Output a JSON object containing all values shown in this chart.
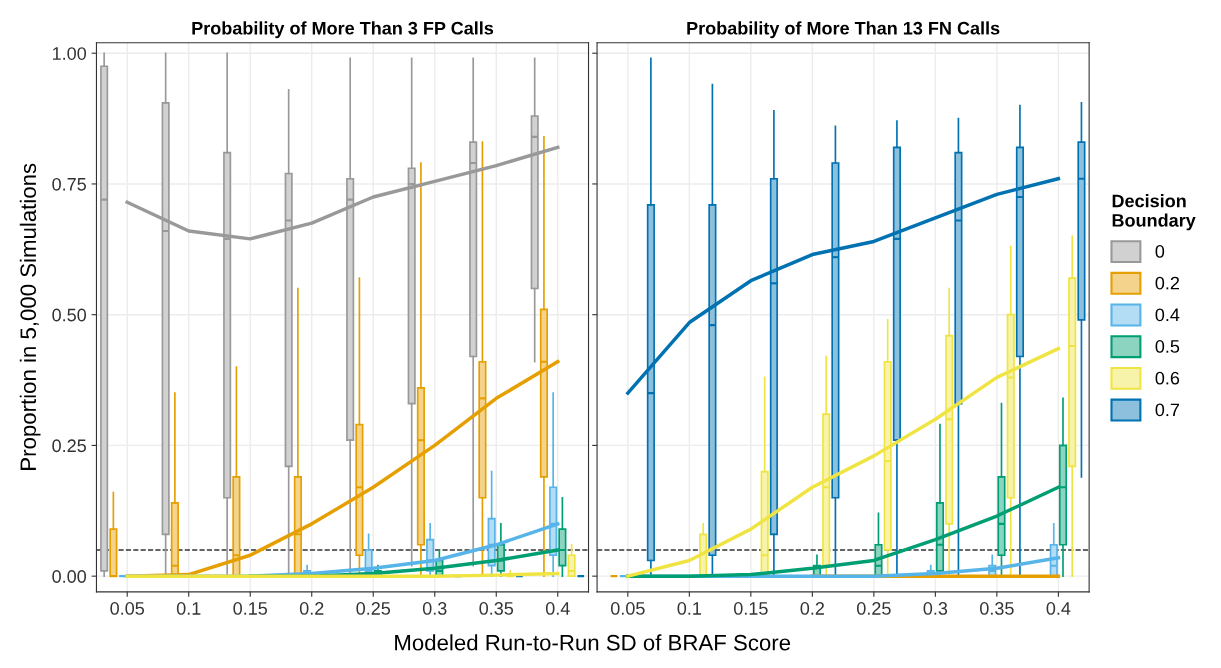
{
  "chart_data": [
    {
      "type": "box",
      "title": "Probability of More Than 3 FP Calls",
      "ylabel": "Proportion in 5,000 Simulations",
      "xlabel": "Modeled Run-to-Run SD of BRAF Score",
      "categories": [
        "0.05",
        "0.1",
        "0.15",
        "0.2",
        "0.25",
        "0.3",
        "0.35",
        "0.4"
      ],
      "ylim": [
        -0.03,
        1.02
      ],
      "yticks": [
        {
          "value": 0,
          "label": "0.00"
        },
        {
          "value": 0.25,
          "label": "0.25"
        },
        {
          "value": 0.5,
          "label": "0.50"
        },
        {
          "value": 0.75,
          "label": "0.75"
        },
        {
          "value": 1,
          "label": "1.00"
        }
      ],
      "grid": true,
      "legend": "right",
      "legend_title": "Decision\nBoundary",
      "ref_lines": [
        {
          "axis": "y",
          "value": 0.05,
          "color": "#333333",
          "line_style": "dashed"
        }
      ],
      "series": [
        {
          "name": "0",
          "color": "#999999",
          "boxes": [
            {
              "low": 0,
              "q1": 0.01,
              "median": 0.72,
              "q3": 0.975,
              "high": 1.0
            },
            {
              "low": 0,
              "q1": 0.08,
              "median": 0.66,
              "q3": 0.905,
              "high": 1.0
            },
            {
              "low": 0,
              "q1": 0.15,
              "median": 0.645,
              "q3": 0.81,
              "high": 1.0
            },
            {
              "low": 0,
              "q1": 0.21,
              "median": 0.68,
              "q3": 0.77,
              "high": 0.93
            },
            {
              "low": 0,
              "q1": 0.26,
              "median": 0.72,
              "q3": 0.76,
              "high": 0.99
            },
            {
              "low": 0.02,
              "q1": 0.33,
              "median": 0.75,
              "q3": 0.78,
              "high": 0.99
            },
            {
              "low": 0.02,
              "q1": 0.42,
              "median": 0.79,
              "q3": 0.83,
              "high": 0.99
            },
            {
              "low": 0.41,
              "q1": 0.55,
              "median": 0.84,
              "q3": 0.88,
              "high": 0.99
            }
          ]
        },
        {
          "name": "0.2",
          "color": "#E69F00",
          "boxes": [
            {
              "low": 0,
              "q1": 0,
              "median": 0,
              "q3": 0.09,
              "high": 0.16
            },
            {
              "low": 0,
              "q1": 0,
              "median": 0.02,
              "q3": 0.14,
              "high": 0.35
            },
            {
              "low": 0,
              "q1": 0,
              "median": 0.04,
              "q3": 0.19,
              "high": 0.4
            },
            {
              "low": 0,
              "q1": 0,
              "median": 0.08,
              "q3": 0.19,
              "high": 0.55
            },
            {
              "low": 0,
              "q1": 0.04,
              "median": 0.17,
              "q3": 0.29,
              "high": 0.57
            },
            {
              "low": 0,
              "q1": 0.06,
              "median": 0.26,
              "q3": 0.36,
              "high": 0.79
            },
            {
              "low": 0,
              "q1": 0.15,
              "median": 0.34,
              "q3": 0.41,
              "high": 0.83
            },
            {
              "low": 0,
              "q1": 0.19,
              "median": 0.41,
              "q3": 0.51,
              "high": 0.84
            }
          ]
        },
        {
          "name": "0.4",
          "color": "#56B4E9",
          "boxes": [
            {
              "low": 0,
              "q1": 0,
              "median": 0,
              "q3": 0,
              "high": 0
            },
            {
              "low": 0,
              "q1": 0,
              "median": 0,
              "q3": 0,
              "high": 0
            },
            {
              "low": 0,
              "q1": 0,
              "median": 0,
              "q3": 0,
              "high": 0
            },
            {
              "low": 0,
              "q1": 0,
              "median": 0,
              "q3": 0.01,
              "high": 0.02
            },
            {
              "low": 0,
              "q1": 0,
              "median": 0.01,
              "q3": 0.05,
              "high": 0.08
            },
            {
              "low": 0,
              "q1": 0.01,
              "median": 0.03,
              "q3": 0.07,
              "high": 0.1
            },
            {
              "low": 0,
              "q1": 0.02,
              "median": 0.06,
              "q3": 0.11,
              "high": 0.2
            },
            {
              "low": 0,
              "q1": 0.04,
              "median": 0.1,
              "q3": 0.17,
              "high": 0.35
            }
          ]
        },
        {
          "name": "0.5",
          "color": "#009E73",
          "boxes": [
            {
              "low": 0,
              "q1": 0,
              "median": 0,
              "q3": 0,
              "high": 0
            },
            {
              "low": 0,
              "q1": 0,
              "median": 0,
              "q3": 0,
              "high": 0
            },
            {
              "low": 0,
              "q1": 0,
              "median": 0,
              "q3": 0,
              "high": 0
            },
            {
              "low": 0,
              "q1": 0,
              "median": 0,
              "q3": 0,
              "high": 0
            },
            {
              "low": 0,
              "q1": 0,
              "median": 0,
              "q3": 0.01,
              "high": 0.02
            },
            {
              "low": 0,
              "q1": 0,
              "median": 0.01,
              "q3": 0.03,
              "high": 0.05
            },
            {
              "low": 0,
              "q1": 0.01,
              "median": 0.03,
              "q3": 0.06,
              "high": 0.1
            },
            {
              "low": 0,
              "q1": 0.02,
              "median": 0.05,
              "q3": 0.09,
              "high": 0.15
            }
          ]
        },
        {
          "name": "0.6",
          "color": "#F0E442",
          "boxes": [
            {
              "low": 0,
              "q1": 0,
              "median": 0,
              "q3": 0,
              "high": 0
            },
            {
              "low": 0,
              "q1": 0,
              "median": 0,
              "q3": 0,
              "high": 0
            },
            {
              "low": 0,
              "q1": 0,
              "median": 0,
              "q3": 0,
              "high": 0
            },
            {
              "low": 0,
              "q1": 0,
              "median": 0,
              "q3": 0,
              "high": 0
            },
            {
              "low": 0,
              "q1": 0,
              "median": 0,
              "q3": 0,
              "high": 0
            },
            {
              "low": 0,
              "q1": 0,
              "median": 0,
              "q3": 0,
              "high": 0
            },
            {
              "low": 0,
              "q1": 0,
              "median": 0,
              "q3": 0,
              "high": 0.01
            },
            {
              "low": 0,
              "q1": 0,
              "median": 0.01,
              "q3": 0.04,
              "high": 0.06
            }
          ]
        },
        {
          "name": "0.7",
          "color": "#0072B2",
          "boxes": [
            {
              "low": 0,
              "q1": 0,
              "median": 0,
              "q3": 0,
              "high": 0
            },
            {
              "low": 0,
              "q1": 0,
              "median": 0,
              "q3": 0,
              "high": 0
            },
            {
              "low": 0,
              "q1": 0,
              "median": 0,
              "q3": 0,
              "high": 0
            },
            {
              "low": 0,
              "q1": 0,
              "median": 0,
              "q3": 0,
              "high": 0
            },
            {
              "low": 0,
              "q1": 0,
              "median": 0,
              "q3": 0,
              "high": 0
            },
            {
              "low": 0,
              "q1": 0,
              "median": 0,
              "q3": 0,
              "high": 0
            },
            {
              "low": 0,
              "q1": 0,
              "median": 0,
              "q3": 0,
              "high": 0
            },
            {
              "low": 0,
              "q1": 0,
              "median": 0,
              "q3": 0,
              "high": 0
            }
          ]
        },
        {
          "type": "line",
          "color": "#999999",
          "values": [
            0.715,
            0.66,
            0.645,
            0.675,
            0.725,
            0.755,
            0.785,
            0.82
          ]
        },
        {
          "type": "line",
          "color": "#E69F00",
          "values": [
            0,
            0.003,
            0.04,
            0.1,
            0.17,
            0.25,
            0.34,
            0.41
          ]
        },
        {
          "type": "line",
          "color": "#56B4E9",
          "values": [
            0,
            0,
            0,
            0.005,
            0.015,
            0.03,
            0.06,
            0.1
          ]
        },
        {
          "type": "line",
          "color": "#009E73",
          "values": [
            null,
            null,
            0,
            0,
            0.005,
            0.015,
            0.03,
            0.05
          ]
        },
        {
          "type": "line",
          "color": "#F0E442",
          "values": [
            0,
            0,
            0,
            0,
            0,
            0,
            0.002,
            0.005
          ]
        }
      ]
    },
    {
      "type": "box",
      "title": "Probability of More Than 13 FN Calls",
      "categories": [
        "0.05",
        "0.1",
        "0.15",
        "0.2",
        "0.25",
        "0.3",
        "0.35",
        "0.4"
      ],
      "ylim": [
        -0.03,
        1.02
      ],
      "tick_labels": "x",
      "grid": true,
      "ref_lines": [
        {
          "axis": "y",
          "value": 0.05,
          "color": "#333333",
          "line_style": "dashed"
        }
      ],
      "series": [
        {
          "color": "#999999",
          "boxes": [
            null,
            null,
            null,
            null,
            null,
            null,
            null,
            null
          ]
        },
        {
          "color": "#E69F00",
          "boxes": [
            {
              "low": 0,
              "q1": 0,
              "median": 0,
              "q3": 0,
              "high": 0
            },
            {
              "low": 0,
              "q1": 0,
              "median": 0,
              "q3": 0,
              "high": 0
            },
            {
              "low": 0,
              "q1": 0,
              "median": 0,
              "q3": 0,
              "high": 0
            },
            {
              "low": 0,
              "q1": 0,
              "median": 0,
              "q3": 0,
              "high": 0
            },
            {
              "low": 0,
              "q1": 0,
              "median": 0,
              "q3": 0,
              "high": 0
            },
            {
              "low": 0,
              "q1": 0,
              "median": 0,
              "q3": 0,
              "high": 0
            },
            {
              "low": 0,
              "q1": 0,
              "median": 0,
              "q3": 0,
              "high": 0
            },
            {
              "low": 0,
              "q1": 0,
              "median": 0,
              "q3": 0,
              "high": 0
            }
          ]
        },
        {
          "color": "#56B4E9",
          "boxes": [
            {
              "low": 0,
              "q1": 0,
              "median": 0,
              "q3": 0,
              "high": 0
            },
            {
              "low": 0,
              "q1": 0,
              "median": 0,
              "q3": 0,
              "high": 0
            },
            {
              "low": 0,
              "q1": 0,
              "median": 0,
              "q3": 0,
              "high": 0
            },
            {
              "low": 0,
              "q1": 0,
              "median": 0,
              "q3": 0,
              "high": 0
            },
            {
              "low": 0,
              "q1": 0,
              "median": 0,
              "q3": 0,
              "high": 0
            },
            {
              "low": 0,
              "q1": 0,
              "median": 0,
              "q3": 0.01,
              "high": 0.02
            },
            {
              "low": 0,
              "q1": 0,
              "median": 0.01,
              "q3": 0.02,
              "high": 0.04
            },
            {
              "low": 0,
              "q1": 0,
              "median": 0.02,
              "q3": 0.06,
              "high": 0.1
            }
          ]
        },
        {
          "color": "#009E73",
          "boxes": [
            {
              "low": 0,
              "q1": 0,
              "median": 0,
              "q3": 0,
              "high": 0
            },
            {
              "low": 0,
              "q1": 0,
              "median": 0,
              "q3": 0,
              "high": 0
            },
            {
              "low": 0,
              "q1": 0,
              "median": 0,
              "q3": 0,
              "high": 0
            },
            {
              "low": 0,
              "q1": 0,
              "median": 0,
              "q3": 0.02,
              "high": 0.04
            },
            {
              "low": 0,
              "q1": 0,
              "median": 0.02,
              "q3": 0.06,
              "high": 0.12
            },
            {
              "low": 0,
              "q1": 0.01,
              "median": 0.06,
              "q3": 0.14,
              "high": 0.29
            },
            {
              "low": 0,
              "q1": 0.04,
              "median": 0.1,
              "q3": 0.19,
              "high": 0.33
            },
            {
              "low": 0,
              "q1": 0.06,
              "median": 0.17,
              "q3": 0.25,
              "high": 0.34
            }
          ]
        },
        {
          "color": "#F0E442",
          "boxes": [
            {
              "low": 0,
              "q1": 0,
              "median": 0,
              "q3": 0,
              "high": 0
            },
            {
              "low": 0,
              "q1": 0,
              "median": 0,
              "q3": 0.08,
              "high": 0.1
            },
            {
              "low": 0,
              "q1": 0,
              "median": 0.04,
              "q3": 0.2,
              "high": 0.38
            },
            {
              "low": 0,
              "q1": 0.02,
              "median": 0.17,
              "q3": 0.31,
              "high": 0.42
            },
            {
              "low": 0,
              "q1": 0.05,
              "median": 0.22,
              "q3": 0.41,
              "high": 0.49
            },
            {
              "low": 0,
              "q1": 0.1,
              "median": 0.3,
              "q3": 0.46,
              "high": 0.55
            },
            {
              "low": 0,
              "q1": 0.15,
              "median": 0.38,
              "q3": 0.5,
              "high": 0.63
            },
            {
              "low": 0,
              "q1": 0.21,
              "median": 0.44,
              "q3": 0.57,
              "high": 0.65
            }
          ]
        },
        {
          "color": "#0072B2",
          "boxes": [
            {
              "low": 0,
              "q1": 0.03,
              "median": 0.35,
              "q3": 0.71,
              "high": 0.99
            },
            {
              "low": 0,
              "q1": 0.04,
              "median": 0.48,
              "q3": 0.71,
              "high": 0.94
            },
            {
              "low": 0,
              "q1": 0.08,
              "median": 0.56,
              "q3": 0.76,
              "high": 0.89
            },
            {
              "low": 0,
              "q1": 0.15,
              "median": 0.61,
              "q3": 0.79,
              "high": 0.86
            },
            {
              "low": 0,
              "q1": 0.26,
              "median": 0.645,
              "q3": 0.82,
              "high": 0.87
            },
            {
              "low": 0,
              "q1": 0.33,
              "median": 0.68,
              "q3": 0.81,
              "high": 0.875
            },
            {
              "low": 0,
              "q1": 0.42,
              "median": 0.725,
              "q3": 0.82,
              "high": 0.9
            },
            {
              "low": 0.19,
              "q1": 0.49,
              "median": 0.76,
              "q3": 0.83,
              "high": 0.905
            }
          ]
        },
        {
          "type": "line",
          "color": "#E69F00",
          "values": [
            null,
            null,
            null,
            0,
            0,
            0,
            0,
            0
          ]
        },
        {
          "type": "line",
          "color": "#56B4E9",
          "values": [
            0,
            0,
            0,
            0,
            0,
            0.005,
            0.015,
            0.035
          ]
        },
        {
          "type": "line",
          "color": "#009E73",
          "values": [
            0,
            0,
            0.003,
            0.015,
            0.03,
            0.07,
            0.115,
            0.17
          ]
        },
        {
          "type": "line",
          "color": "#F0E442",
          "values": [
            0,
            0.03,
            0.09,
            0.17,
            0.23,
            0.3,
            0.38,
            0.435
          ]
        },
        {
          "type": "line",
          "color": "#0072B2",
          "values": [
            0.35,
            0.485,
            0.565,
            0.615,
            0.64,
            0.685,
            0.73,
            0.76
          ]
        }
      ]
    }
  ]
}
